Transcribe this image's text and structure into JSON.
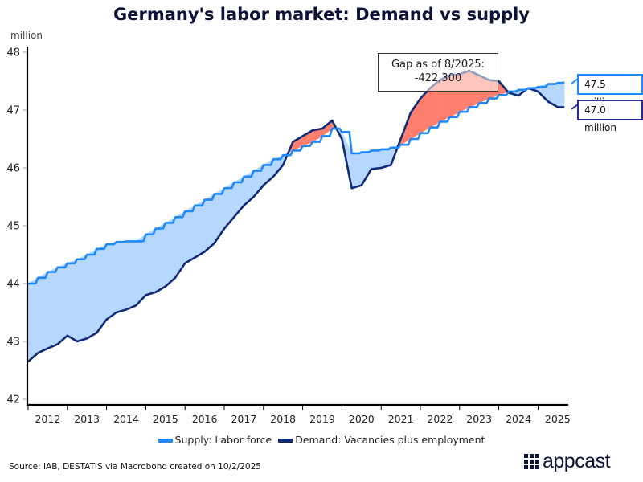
{
  "title": "Germany's labor market: Demand vs supply",
  "colors": {
    "supply": "#1e88ff",
    "demand": "#0f2a78",
    "gap_surplus": "#b6d8ff",
    "gap_shortage": "#ff7f6e",
    "callout_demand_border": "#2a2a9c"
  },
  "annotation": {
    "line1": "Gap as of 8/2025:",
    "line2": "-422,300"
  },
  "callouts": {
    "supply": "47.5 million",
    "demand": "47.0 million"
  },
  "legend": {
    "supply": "Supply: Labor force",
    "demand": "Demand: Vacancies plus employment"
  },
  "source": "Source: IAB, DESTATIS via Macrobond created on 10/2/2025",
  "logo": "appcast",
  "chart_data": {
    "type": "line",
    "title": "Germany's labor market: Demand vs supply",
    "ylabel": "million",
    "xlabel": "",
    "ylim": [
      42,
      48
    ],
    "yticks": [
      "42",
      "43",
      "44",
      "45",
      "46",
      "47",
      "48"
    ],
    "xticks": [
      "2012",
      "2013",
      "2014",
      "2015",
      "2016",
      "2017",
      "2018",
      "2019",
      "2020",
      "2021",
      "2022",
      "2023",
      "2024",
      "2025"
    ],
    "xlim": [
      2012.0,
      2025.67
    ],
    "grid": false,
    "legend_position": "bottom",
    "x": [
      2012.0,
      2012.25,
      2012.5,
      2012.75,
      2013.0,
      2013.25,
      2013.5,
      2013.75,
      2014.0,
      2014.25,
      2014.5,
      2014.75,
      2015.0,
      2015.25,
      2015.5,
      2015.75,
      2016.0,
      2016.25,
      2016.5,
      2016.75,
      2017.0,
      2017.25,
      2017.5,
      2017.75,
      2018.0,
      2018.25,
      2018.5,
      2018.75,
      2019.0,
      2019.25,
      2019.5,
      2019.75,
      2020.0,
      2020.25,
      2020.5,
      2020.75,
      2021.0,
      2021.25,
      2021.5,
      2021.75,
      2022.0,
      2022.25,
      2022.5,
      2022.75,
      2023.0,
      2023.25,
      2023.5,
      2023.75,
      2024.0,
      2024.25,
      2024.5,
      2024.75,
      2025.0,
      2025.25,
      2025.5,
      2025.67
    ],
    "series": [
      {
        "name": "Supply: Labor force",
        "values": [
          44.0,
          44.1,
          44.2,
          44.28,
          44.35,
          44.42,
          44.5,
          44.6,
          44.68,
          44.72,
          44.73,
          44.73,
          44.85,
          44.95,
          45.05,
          45.15,
          45.25,
          45.35,
          45.45,
          45.55,
          45.65,
          45.75,
          45.85,
          45.95,
          46.05,
          46.15,
          46.22,
          46.3,
          46.38,
          46.45,
          46.55,
          46.68,
          46.62,
          46.25,
          46.27,
          46.3,
          46.32,
          46.35,
          46.4,
          46.5,
          46.6,
          46.7,
          46.8,
          46.88,
          46.97,
          47.05,
          47.12,
          47.2,
          47.26,
          47.32,
          47.35,
          47.38,
          47.4,
          47.45,
          47.47,
          47.48
        ]
      },
      {
        "name": "Demand: Vacancies plus employment",
        "values": [
          42.65,
          42.8,
          42.88,
          42.95,
          43.1,
          43.0,
          43.05,
          43.15,
          43.38,
          43.5,
          43.55,
          43.62,
          43.8,
          43.85,
          43.95,
          44.1,
          44.35,
          44.45,
          44.55,
          44.7,
          44.95,
          45.15,
          45.35,
          45.5,
          45.7,
          45.85,
          46.05,
          46.45,
          46.55,
          46.65,
          46.68,
          46.82,
          46.5,
          45.65,
          45.7,
          45.98,
          46.0,
          46.05,
          46.5,
          46.95,
          47.2,
          47.38,
          47.52,
          47.6,
          47.62,
          47.68,
          47.6,
          47.52,
          47.5,
          47.3,
          47.25,
          47.38,
          47.32,
          47.15,
          47.05,
          47.05
        ]
      }
    ]
  }
}
